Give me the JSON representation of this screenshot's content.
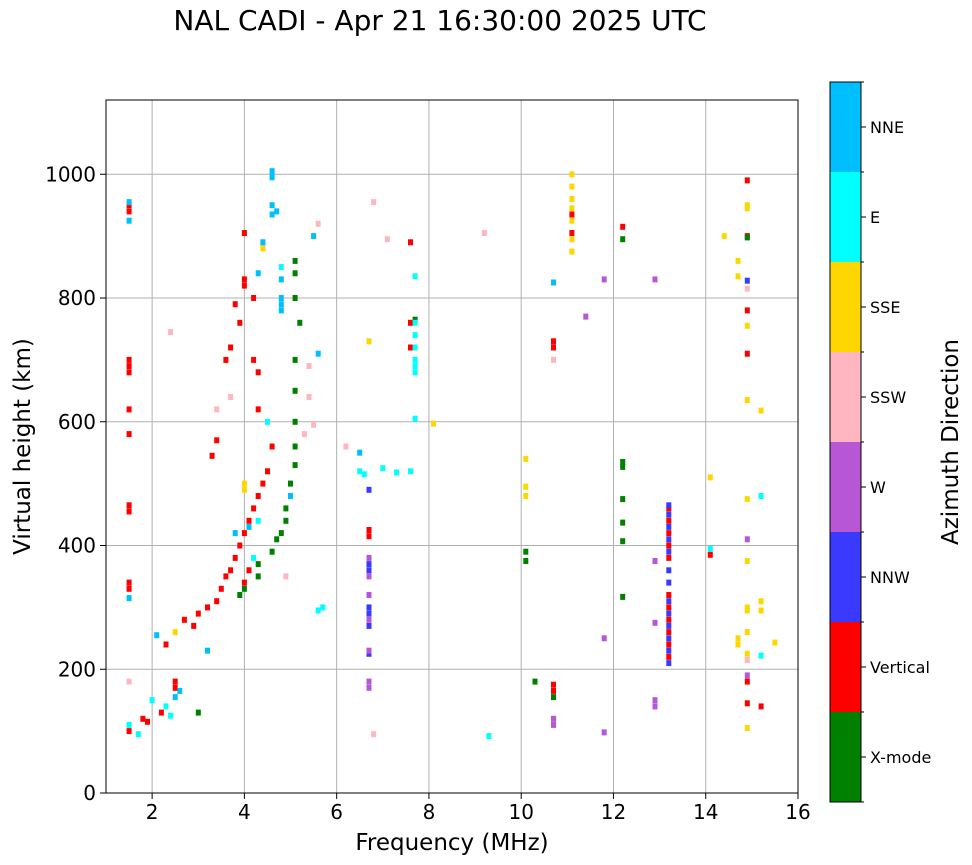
{
  "chart_data": {
    "type": "scatter",
    "title": "NAL CADI - Apr 21 16:30:00 2025 UTC",
    "xlabel": "Frequency (MHz)",
    "ylabel": "Virtual height (km)",
    "xlim": [
      1,
      16
    ],
    "ylim": [
      0,
      1120
    ],
    "xticks": [
      2,
      4,
      6,
      8,
      10,
      12,
      14,
      16
    ],
    "yticks": [
      0,
      200,
      400,
      600,
      800,
      1000
    ],
    "grid": true,
    "colorbar": {
      "label": "Azimuth Direction",
      "position": "right",
      "categories": [
        {
          "name": "X-mode",
          "color": "#008000"
        },
        {
          "name": "Vertical",
          "color": "#ff0000"
        },
        {
          "name": "NNW",
          "color": "#3a3aff"
        },
        {
          "name": "W",
          "color": "#b857d6"
        },
        {
          "name": "SSW",
          "color": "#ffb6c1"
        },
        {
          "name": "SSE",
          "color": "#ffd700"
        },
        {
          "name": "E",
          "color": "#00ffff"
        },
        {
          "name": "NNE",
          "color": "#00bfff"
        }
      ]
    },
    "series": [
      {
        "name": "Vertical",
        "points": [
          [
            1.5,
            940
          ],
          [
            1.5,
            950
          ],
          [
            1.5,
            700
          ],
          [
            1.5,
            690
          ],
          [
            1.5,
            680
          ],
          [
            1.5,
            620
          ],
          [
            1.5,
            580
          ],
          [
            1.5,
            465
          ],
          [
            1.5,
            455
          ],
          [
            1.5,
            340
          ],
          [
            1.5,
            330
          ],
          [
            1.5,
            100
          ],
          [
            1.8,
            120
          ],
          [
            1.9,
            115
          ],
          [
            2.2,
            130
          ],
          [
            2.3,
            240
          ],
          [
            2.5,
            180
          ],
          [
            2.5,
            170
          ],
          [
            2.7,
            280
          ],
          [
            2.9,
            270
          ],
          [
            3.0,
            290
          ],
          [
            3.2,
            300
          ],
          [
            3.3,
            545
          ],
          [
            3.4,
            570
          ],
          [
            3.4,
            310
          ],
          [
            3.5,
            330
          ],
          [
            3.6,
            350
          ],
          [
            3.6,
            700
          ],
          [
            3.7,
            360
          ],
          [
            3.7,
            720
          ],
          [
            3.8,
            380
          ],
          [
            3.8,
            790
          ],
          [
            3.9,
            400
          ],
          [
            3.9,
            760
          ],
          [
            4.0,
            340
          ],
          [
            4.0,
            420
          ],
          [
            4.0,
            820
          ],
          [
            4.0,
            830
          ],
          [
            4.1,
            360
          ],
          [
            4.1,
            440
          ],
          [
            4.2,
            460
          ],
          [
            4.2,
            700
          ],
          [
            4.3,
            480
          ],
          [
            4.3,
            620
          ],
          [
            4.3,
            680
          ],
          [
            4.4,
            500
          ],
          [
            4.5,
            520
          ],
          [
            4.6,
            560
          ],
          [
            4.2,
            800
          ],
          [
            4.0,
            905
          ],
          [
            6.7,
            425
          ],
          [
            6.7,
            415
          ],
          [
            7.6,
            890
          ],
          [
            7.6,
            760
          ],
          [
            7.6,
            720
          ],
          [
            10.7,
            730
          ],
          [
            10.7,
            720
          ],
          [
            10.7,
            825
          ],
          [
            10.7,
            175
          ],
          [
            10.7,
            165
          ],
          [
            11.1,
            935
          ],
          [
            11.1,
            905
          ],
          [
            12.2,
            915
          ],
          [
            13.2,
            460
          ],
          [
            13.2,
            440
          ],
          [
            13.2,
            420
          ],
          [
            13.2,
            400
          ],
          [
            13.2,
            380
          ],
          [
            13.2,
            320
          ],
          [
            13.2,
            300
          ],
          [
            13.2,
            280
          ],
          [
            13.2,
            260
          ],
          [
            13.2,
            240
          ],
          [
            13.2,
            220
          ],
          [
            14.1,
            385
          ],
          [
            14.9,
            990
          ],
          [
            14.9,
            900
          ],
          [
            14.9,
            780
          ],
          [
            14.9,
            710
          ],
          [
            14.9,
            180
          ],
          [
            14.9,
            145
          ],
          [
            15.2,
            140
          ]
        ]
      },
      {
        "name": "X-mode",
        "points": [
          [
            3.0,
            130
          ],
          [
            3.9,
            320
          ],
          [
            4.0,
            330
          ],
          [
            4.3,
            350
          ],
          [
            4.3,
            370
          ],
          [
            4.6,
            390
          ],
          [
            4.7,
            410
          ],
          [
            4.8,
            420
          ],
          [
            4.9,
            440
          ],
          [
            4.9,
            460
          ],
          [
            5.0,
            480
          ],
          [
            5.0,
            500
          ],
          [
            5.1,
            530
          ],
          [
            5.1,
            560
          ],
          [
            5.1,
            600
          ],
          [
            5.1,
            650
          ],
          [
            5.1,
            700
          ],
          [
            5.2,
            760
          ],
          [
            5.1,
            800
          ],
          [
            5.1,
            840
          ],
          [
            5.1,
            860
          ],
          [
            7.7,
            765
          ],
          [
            10.1,
            390
          ],
          [
            10.1,
            375
          ],
          [
            10.3,
            180
          ],
          [
            10.7,
            155
          ],
          [
            12.2,
            535
          ],
          [
            12.2,
            527
          ],
          [
            12.2,
            475
          ],
          [
            12.2,
            437
          ],
          [
            12.2,
            407
          ],
          [
            12.2,
            317
          ],
          [
            12.2,
            895
          ],
          [
            14.9,
            898
          ]
        ]
      },
      {
        "name": "NNW",
        "points": [
          [
            6.7,
            370
          ],
          [
            6.7,
            360
          ],
          [
            6.7,
            300
          ],
          [
            6.7,
            290
          ],
          [
            6.7,
            270
          ],
          [
            6.7,
            225
          ],
          [
            6.7,
            490
          ],
          [
            13.2,
            465
          ],
          [
            13.2,
            450
          ],
          [
            13.2,
            430
          ],
          [
            13.2,
            410
          ],
          [
            13.2,
            390
          ],
          [
            13.2,
            360
          ],
          [
            13.2,
            340
          ],
          [
            13.2,
            310
          ],
          [
            13.2,
            290
          ],
          [
            13.2,
            270
          ],
          [
            13.2,
            250
          ],
          [
            13.2,
            230
          ],
          [
            13.2,
            210
          ],
          [
            14.9,
            828
          ]
        ]
      },
      {
        "name": "W",
        "points": [
          [
            6.7,
            380
          ],
          [
            6.7,
            350
          ],
          [
            6.7,
            320
          ],
          [
            6.7,
            280
          ],
          [
            6.7,
            230
          ],
          [
            6.7,
            180
          ],
          [
            6.7,
            170
          ],
          [
            10.7,
            120
          ],
          [
            10.7,
            110
          ],
          [
            11.4,
            770
          ],
          [
            11.8,
            830
          ],
          [
            11.8,
            250
          ],
          [
            11.8,
            98
          ],
          [
            12.9,
            150
          ],
          [
            12.9,
            140
          ],
          [
            12.9,
            375
          ],
          [
            12.9,
            830
          ],
          [
            12.9,
            275
          ],
          [
            14.9,
            410
          ],
          [
            14.9,
            190
          ]
        ]
      },
      {
        "name": "SSW",
        "points": [
          [
            1.5,
            180
          ],
          [
            2.4,
            745
          ],
          [
            3.4,
            620
          ],
          [
            3.7,
            640
          ],
          [
            4.9,
            350
          ],
          [
            5.3,
            580
          ],
          [
            5.4,
            640
          ],
          [
            5.4,
            690
          ],
          [
            5.5,
            595
          ],
          [
            5.6,
            920
          ],
          [
            6.2,
            560
          ],
          [
            6.8,
            95
          ],
          [
            6.8,
            955
          ],
          [
            7.1,
            895
          ],
          [
            9.2,
            905
          ],
          [
            10.7,
            700
          ],
          [
            14.9,
            815
          ],
          [
            14.9,
            215
          ]
        ]
      },
      {
        "name": "SSE",
        "points": [
          [
            2.5,
            260
          ],
          [
            4.0,
            500
          ],
          [
            4.0,
            490
          ],
          [
            4.4,
            880
          ],
          [
            4.4,
            890
          ],
          [
            6.7,
            730
          ],
          [
            8.1,
            597
          ],
          [
            10.1,
            540
          ],
          [
            10.1,
            495
          ],
          [
            10.1,
            480
          ],
          [
            11.1,
            1000
          ],
          [
            11.1,
            980
          ],
          [
            11.1,
            960
          ],
          [
            11.1,
            945
          ],
          [
            11.1,
            925
          ],
          [
            11.1,
            895
          ],
          [
            11.1,
            875
          ],
          [
            14.1,
            510
          ],
          [
            14.4,
            900
          ],
          [
            14.7,
            860
          ],
          [
            14.7,
            835
          ],
          [
            14.7,
            250
          ],
          [
            14.7,
            240
          ],
          [
            14.9,
            950
          ],
          [
            14.9,
            945
          ],
          [
            14.9,
            755
          ],
          [
            14.9,
            635
          ],
          [
            14.9,
            475
          ],
          [
            14.9,
            375
          ],
          [
            14.9,
            300
          ],
          [
            14.9,
            295
          ],
          [
            14.9,
            260
          ],
          [
            14.9,
            225
          ],
          [
            14.9,
            105
          ],
          [
            15.2,
            618
          ],
          [
            15.2,
            310
          ],
          [
            15.2,
            295
          ],
          [
            15.5,
            243
          ]
        ]
      },
      {
        "name": "E",
        "points": [
          [
            1.5,
            110
          ],
          [
            1.7,
            95
          ],
          [
            2.0,
            150
          ],
          [
            2.3,
            140
          ],
          [
            2.4,
            125
          ],
          [
            4.2,
            380
          ],
          [
            4.3,
            440
          ],
          [
            4.5,
            600
          ],
          [
            4.8,
            850
          ],
          [
            5.6,
            295
          ],
          [
            5.7,
            300
          ],
          [
            6.5,
            520
          ],
          [
            6.6,
            515
          ],
          [
            7.0,
            525
          ],
          [
            7.3,
            518
          ],
          [
            7.6,
            520
          ],
          [
            7.7,
            760
          ],
          [
            7.7,
            740
          ],
          [
            7.7,
            720
          ],
          [
            7.7,
            700
          ],
          [
            7.7,
            690
          ],
          [
            7.7,
            680
          ],
          [
            7.7,
            605
          ],
          [
            7.7,
            835
          ],
          [
            9.3,
            92
          ],
          [
            14.1,
            395
          ],
          [
            15.2,
            480
          ],
          [
            15.2,
            222
          ]
        ]
      },
      {
        "name": "NNE",
        "points": [
          [
            1.5,
            955
          ],
          [
            1.5,
            925
          ],
          [
            1.5,
            315
          ],
          [
            2.1,
            255
          ],
          [
            2.5,
            155
          ],
          [
            2.6,
            165
          ],
          [
            3.2,
            230
          ],
          [
            3.8,
            420
          ],
          [
            4.1,
            430
          ],
          [
            4.3,
            840
          ],
          [
            4.4,
            890
          ],
          [
            4.6,
            1005
          ],
          [
            4.6,
            995
          ],
          [
            4.6,
            950
          ],
          [
            4.6,
            935
          ],
          [
            4.7,
            940
          ],
          [
            4.8,
            830
          ],
          [
            4.8,
            800
          ],
          [
            4.8,
            790
          ],
          [
            4.8,
            780
          ],
          [
            5.0,
            480
          ],
          [
            5.5,
            900
          ],
          [
            5.6,
            710
          ],
          [
            6.5,
            550
          ],
          [
            10.7,
            825
          ]
        ]
      }
    ]
  }
}
